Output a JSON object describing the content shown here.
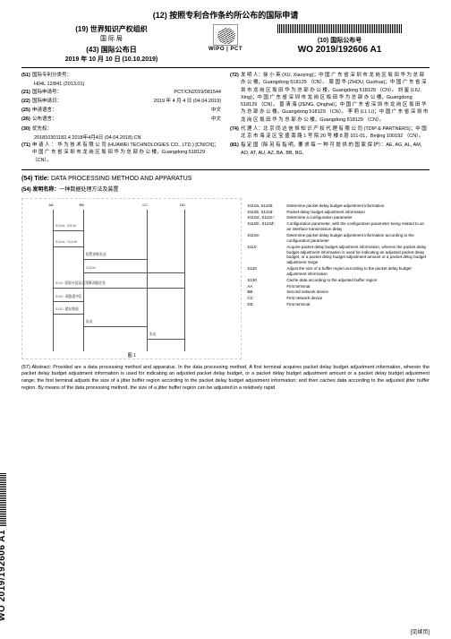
{
  "header": {
    "main_title": "(12) 按照专利合作条约所公布的国际申请",
    "org_line1": "(19) 世界知识产权组织",
    "org_line2": "国 际 局",
    "date_label": "(43) 国际公布日",
    "date_value": "2019 年 10 月 10 日 (10.10.2019)",
    "wipo": "WIPO | PCT",
    "pubno_label": "(10) 国际公布号",
    "pubno": "WO 2019/192606 A1"
  },
  "biblio_left": [
    {
      "tag": "(51)",
      "text": "国际专利分类号：",
      "sub": "H04L 12/841 (2013.01)"
    },
    {
      "tag": "(21)",
      "text": "国际申请号：",
      "r": "PCT/CN2019/081544"
    },
    {
      "tag": "(22)",
      "text": "国际申请日：",
      "r": "2019 年 4 月 4 日 (04.04.2019)"
    },
    {
      "tag": "(25)",
      "text": "申请语言：",
      "r": "中文"
    },
    {
      "tag": "(26)",
      "text": "公布语言：",
      "r": "中文"
    },
    {
      "tag": "(30)",
      "text": "优先权：",
      "sub": "201810301182.4    2018年4月4日 (04.04.2018)    CN"
    },
    {
      "tag": "(71)",
      "text": "申 请 人 ： 华 为 技 术 有 限 公 司 (HUAWEI TECHNOLOGIES CO., LTD.) [CN/CN]；中 国 广 东 省 深 圳 市 龙 岗 区 坂 田 华 为 总 部 办 公 楼，Guangdong 518129 （CN）。"
    }
  ],
  "biblio_right": [
    {
      "tag": "(72)",
      "text": "发 明 人：徐 小 英 (XU, Xiaoying)；中 国 广 东 省 深 圳 市 龙 岗 区 坂 田 华 为 总 部 办 公 楼，Guangdong 518129 （CN）。  周 国 华 (ZHOU, Guohua)；中 国 广 东 省 深 圳 市 龙 岗 区 坂 田 华 为 总 部 办 公 楼，Guangdong 518129 （CN）。  刘 星 (LIU, Xing)；中 国 广 东 省 深 圳 市 龙 岗 区 坂 田 华 为 总 部 办 公 楼，Guangdong 518129 （CN）。  曾 清 海 (ZENG, Qinghai)；中 国 广 东 省 深 圳 市 龙 岗 区 坂 田 华 为 总 部 办 公 楼，Guangdong 518129 （CN）。  李 莉 (LI, Li)；中 国 广 东 省 深 圳 市 龙 岗 区 坂 田 华 为 总 部 办 公 楼，Guangdong 518129 （CN）。"
    },
    {
      "tag": "(74)",
      "text": "代 理 人：北 京 同 达 信 恒 知 识 产 权 代 理 有 限 公 司 (TDIP & PARTNERS)；中 国 北 京 市 海 淀 区 宝 盛 南 路 1 号 院 20 号 楼 8 层 101-01，Beijing 100192 （CN）。"
    },
    {
      "tag": "(81)",
      "text": "指 定 国（除 另 有 指 明，要 求 每 一 种 可 提 供 的 国 家 保 护）：AE, AG, AL, AM, AO, AT, AU, AZ, BA, BB, BG,"
    }
  ],
  "title": {
    "en_pre": "(54) Title: ",
    "en": "DATA PROCESSING METHOD AND APPARATUS",
    "cn_pre": "(54) 发明名称：",
    "cn": "一种数据处理方法及装置"
  },
  "figure": {
    "nodes": [
      "AA",
      "BB",
      "CC",
      "DD"
    ],
    "positions_pct": [
      12,
      26,
      55,
      72
    ],
    "arrows": [
      {
        "y": 20,
        "from": 0,
        "to": 1,
        "label": "S110a. S110b"
      },
      {
        "y": 30,
        "from": 0,
        "to": 1,
        "label": "S110a'. S110b'"
      },
      {
        "y": 38,
        "from": 1,
        "to": 2,
        "label": "配置参数发送",
        "top": true
      },
      {
        "y": 46,
        "from": 1,
        "to": 3,
        "label": "S110b'"
      },
      {
        "y": 56,
        "from": 0,
        "to": 3,
        "label": "S110. 获取分组延迟预算调整信息"
      },
      {
        "y": 64,
        "from": 0,
        "to": 1,
        "label": "S120. 调整缓冲区"
      },
      {
        "y": 72,
        "from": 0,
        "to": 1,
        "label": "S130. 缓存数据"
      },
      {
        "y": 80,
        "from": 1,
        "to": 2,
        "label": "发送"
      },
      {
        "y": 88,
        "from": 2,
        "to": 3,
        "label": "发送"
      }
    ],
    "caption": "图 1",
    "legend": [
      {
        "k": "S110a, S110b:",
        "v": "Determine packet delay budget adjustment information"
      },
      {
        "k": "S110b, S110d:",
        "v": "Packet delay budget adjustment information"
      },
      {
        "k": "S110a', S110c':",
        "v": "Determine a configuration parameter"
      },
      {
        "k": "S110b', S110d':",
        "v": "Configuration parameter, with the configuration parameter being related to an air interface transmission delay"
      },
      {
        "k": "S110e:",
        "v": "Determine packet delay budget adjustment information according to the configuration parameter"
      },
      {
        "k": "S110",
        "v": "Acquire packet delay budget adjustment information, wherein the packet delay budget adjustment information is used for indicating an adjusted packet delay budget, or a packet delay budget adjustment amount or a packet delay budget adjustment range"
      },
      {
        "k": "S120",
        "v": "Adjust the size of a buffer region according to the packet delay budget adjustment information"
      },
      {
        "k": "S130",
        "v": "Cache data according to the adjusted buffer region"
      },
      {
        "k": "AA",
        "v": "First terminal"
      },
      {
        "k": "BB",
        "v": "Second network device"
      },
      {
        "k": "CC",
        "v": "First network device"
      },
      {
        "k": "DD",
        "v": "First terminal"
      }
    ]
  },
  "abstract": "(57) Abstract: Provided are a data processing method and apparatus. In the data processing method, A first terminal acquires packet delay budget adjustment information, wherein the packet delay budget adjustment information is used for indicating an adjusted packet delay budget, or a packet delay budget adjustment amount or a packet delay budget adjustment range; the first terminal adjusts the size of a jitter buffer region according to the packet delay budget adjustment information; and then caches data according to the adjusted jitter buffer region. By means of the data processing method, the size of a jitter buffer region can be adjusted in a relatively rapid",
  "side_code": "WO 2019/192606 A1",
  "footer": "[见续页]"
}
